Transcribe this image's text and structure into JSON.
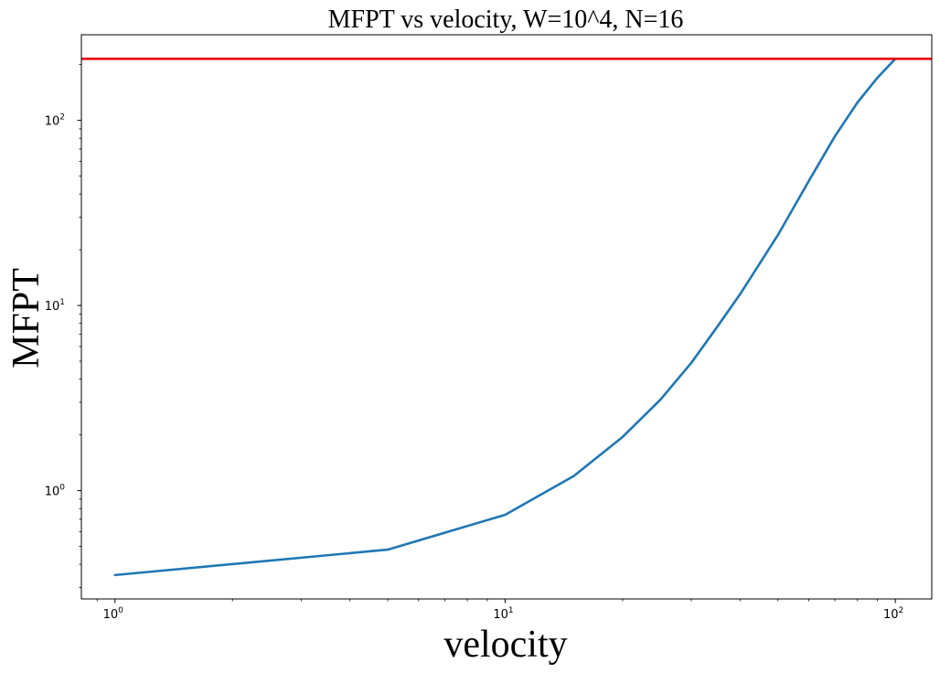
{
  "chart_data": {
    "type": "line",
    "title": "MFPT vs velocity, W=10^4, N=16",
    "xlabel": "velocity",
    "ylabel": "MFPT",
    "xscale": "log",
    "yscale": "log",
    "xlim": [
      0.82,
      124
    ],
    "ylim": [
      0.26,
      290
    ],
    "x_ticks": [
      {
        "value": 1,
        "base": "10",
        "exp": "0"
      },
      {
        "value": 10,
        "base": "10",
        "exp": "1"
      },
      {
        "value": 100,
        "base": "10",
        "exp": "2"
      }
    ],
    "y_ticks": [
      {
        "value": 1,
        "base": "10",
        "exp": "0"
      },
      {
        "value": 10,
        "base": "10",
        "exp": "1"
      },
      {
        "value": 100,
        "base": "10",
        "exp": "2"
      }
    ],
    "grid": false,
    "series": [
      {
        "color": "#1f77b4",
        "x": [
          1,
          5,
          10,
          15,
          20,
          25,
          30,
          35,
          40,
          50,
          60,
          70,
          80,
          90,
          100
        ],
        "y": [
          0.35,
          0.48,
          0.74,
          1.2,
          1.95,
          3.1,
          4.9,
          7.7,
          11.5,
          24,
          47,
          82,
          125,
          170,
          215
        ]
      }
    ],
    "hlines": [
      {
        "y": 215,
        "color": "#e8000b"
      }
    ]
  }
}
